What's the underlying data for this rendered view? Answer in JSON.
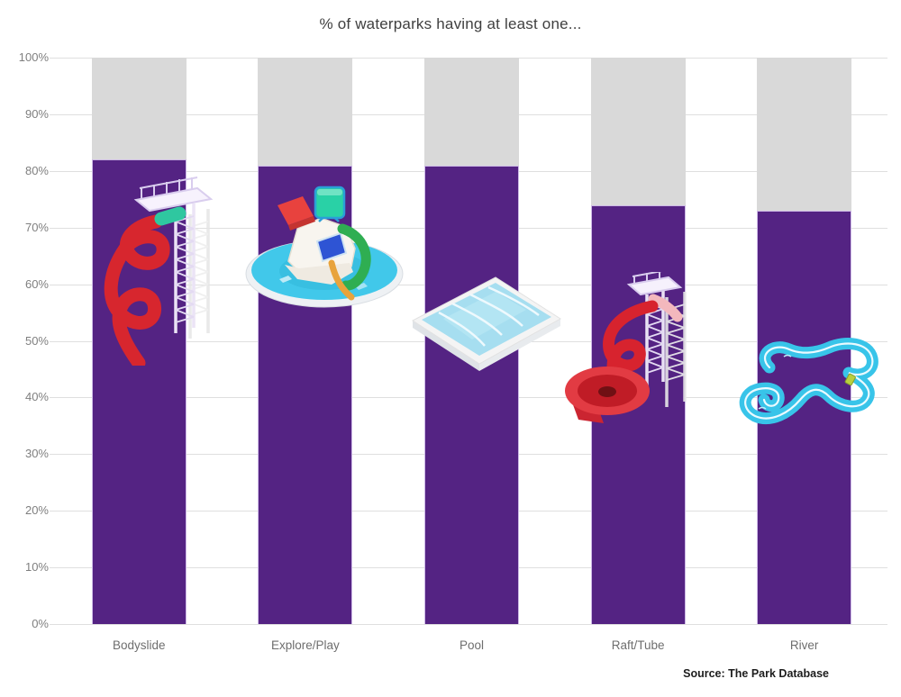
{
  "title": "% of waterparks having at least one...",
  "source": "Source: The Park Database",
  "chart_data": {
    "type": "bar",
    "stacked": true,
    "title": "% of waterparks having at least one...",
    "categories": [
      "Bodyslide",
      "Explore/Play",
      "Pool",
      "Raft/Tube",
      "River"
    ],
    "values": [
      82,
      81,
      81,
      74,
      73
    ],
    "remainder_to_100": true,
    "xlabel": "",
    "ylabel": "",
    "ylim": [
      0,
      100
    ],
    "ytick_step": 10,
    "ytick_labels": [
      "0%",
      "10%",
      "20%",
      "30%",
      "40%",
      "50%",
      "60%",
      "70%",
      "80%",
      "90%",
      "100%"
    ],
    "grid": true,
    "legend": "none",
    "bar_color": "#542383",
    "remainder_color": "#d9d9d9",
    "icons": [
      "bodyslide-icon",
      "explore-play-icon",
      "pool-icon",
      "raft-tube-icon",
      "river-icon"
    ]
  },
  "colors": {
    "background": "#ffffff",
    "gridline": "#dfdfdf",
    "axis_text": "#7f7f7f",
    "category_text": "#6e6e6e",
    "title_text": "#3f3f3f",
    "source_text": "#1d1d1d"
  }
}
